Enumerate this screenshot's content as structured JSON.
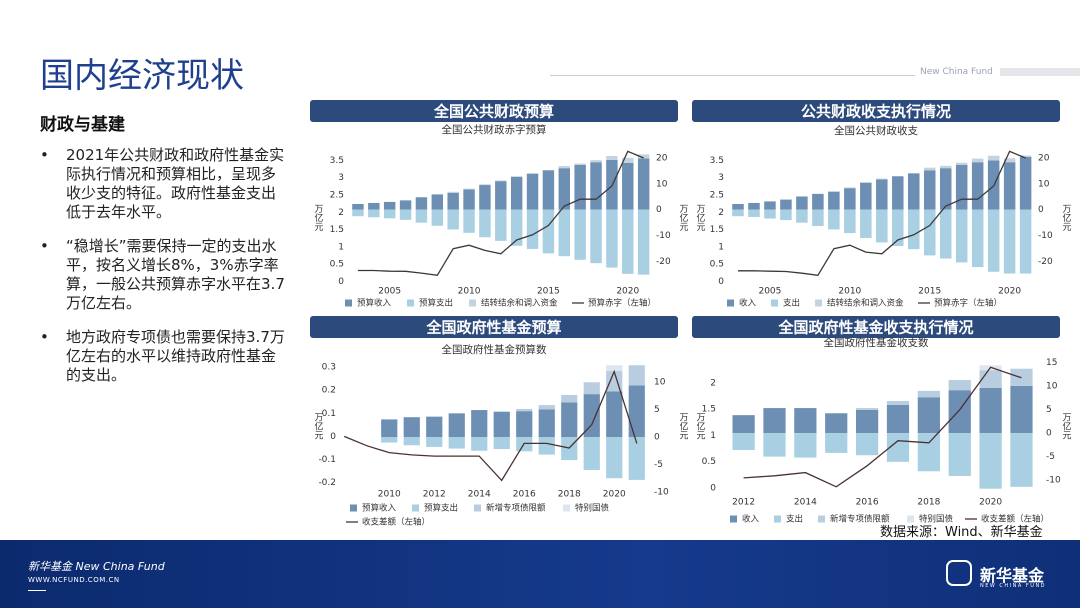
{
  "brand": "New China Fund",
  "title": "国内经济现状",
  "section": "财政与基建",
  "bullets": [
    "2021年公共财政和政府性基金实际执行情况和预算相比，呈现多收少支的特征。政府性基金支出低于去年水平。",
    "“稳增长”需要保持一定的支出水平，按名义增长8%，3%赤字率算，一般公共预算赤字水平在3.7万亿左右。",
    "地方政府专项债也需要保持3.7万亿左右的水平以维持政府性基金的支出。"
  ],
  "source": "数据来源：Wind、新华基金",
  "footer": {
    "brand": "新华基金 New China Fund",
    "url": "WWW.NCFUND.COM.CN",
    "logo_cn": "新华基金",
    "logo_en": "NEW CHINA FUND"
  },
  "chart_data": [
    {
      "type": "bar",
      "title": "全国公共财政预算",
      "subtitle": "全国公共财政赤字预算",
      "ylabel": "万亿元",
      "y2label": "万亿元",
      "x": [
        2003,
        2004,
        2005,
        2006,
        2007,
        2008,
        2009,
        2010,
        2011,
        2012,
        2013,
        2014,
        2015,
        2016,
        2017,
        2018,
        2019,
        2020,
        2021
      ],
      "xlim": [
        2002.5,
        2021.4
      ],
      "xticks": [
        2005,
        2010,
        2015,
        2020
      ],
      "ylim": [
        -0.1,
        3.8
      ],
      "yticks": [
        0,
        0.5,
        1,
        1.5,
        2,
        2.5,
        3,
        3.5
      ],
      "y2lim": [
        -29,
        23
      ],
      "y2ticks": [
        -20,
        -10,
        0,
        10,
        20
      ],
      "series": [
        {
          "name": "预算收入",
          "type": "bar",
          "axis": "y2",
          "color": "#6d8fb3",
          "values": [
            2.2,
            2.6,
            3.0,
            3.6,
            4.8,
            5.9,
            6.5,
            7.8,
            9.5,
            11.0,
            12.6,
            13.9,
            15.2,
            16.0,
            17.3,
            18.3,
            19.2,
            18.0,
            19.8
          ]
        },
        {
          "name": "预算支出",
          "type": "bar",
          "axis": "y2",
          "color": "#a9cfe2",
          "values": [
            -2.5,
            -2.9,
            -3.3,
            -3.9,
            -5.0,
            -6.2,
            -7.6,
            -8.9,
            -10.6,
            -12.0,
            -13.9,
            -15.1,
            -16.8,
            -17.9,
            -19.3,
            -20.6,
            -22.3,
            -24.7,
            -25.0
          ]
        },
        {
          "name": "结转结余和调入资金",
          "type": "bar",
          "axis": "y2",
          "color": "#c5d3e0",
          "values": [
            0,
            0,
            0,
            0,
            0,
            0,
            0.4,
            0.3,
            0.3,
            0.3,
            0.3,
            0.1,
            0.1,
            0.8,
            0.5,
            0.8,
            1.5,
            2.0,
            1.5
          ]
        },
        {
          "name": "预算赤字（左轴）",
          "type": "line",
          "color": "#3a3a3a",
          "values": [
            0.32,
            0.32,
            0.3,
            0.295,
            0.245,
            0.18,
            0.95,
            1.05,
            0.9,
            0.8,
            1.2,
            1.35,
            1.62,
            2.18,
            2.38,
            2.38,
            2.76,
            3.76,
            3.57
          ]
        }
      ]
    },
    {
      "type": "bar",
      "title": "公共财政收支执行情况",
      "subtitle": "全国公共财政收支",
      "ylabel": "万亿元",
      "y2label": "万亿元",
      "x": [
        2003,
        2004,
        2005,
        2006,
        2007,
        2008,
        2009,
        2010,
        2011,
        2012,
        2013,
        2014,
        2015,
        2016,
        2017,
        2018,
        2019,
        2020,
        2021
      ],
      "xlim": [
        2002.5,
        2021.4
      ],
      "xticks": [
        2005,
        2010,
        2015,
        2020
      ],
      "ylim": [
        -0.1,
        3.8
      ],
      "yticks": [
        0,
        0.5,
        1,
        1.5,
        2,
        2.5,
        3,
        3.5
      ],
      "y2lim": [
        -29,
        23
      ],
      "y2ticks": [
        -20,
        -10,
        0,
        10,
        20
      ],
      "series": [
        {
          "name": "收入",
          "type": "bar",
          "axis": "y2",
          "color": "#6d8fb3",
          "values": [
            2.2,
            2.6,
            3.2,
            3.9,
            5.1,
            6.1,
            6.9,
            8.3,
            10.4,
            11.7,
            12.9,
            14.0,
            15.2,
            16.0,
            17.3,
            18.3,
            19.0,
            18.3,
            20.3
          ]
        },
        {
          "name": "支出",
          "type": "bar",
          "axis": "y2",
          "color": "#a9cfe2",
          "values": [
            -2.5,
            -2.8,
            -3.4,
            -4.0,
            -5.0,
            -6.3,
            -7.6,
            -9.0,
            -10.9,
            -12.6,
            -14.0,
            -15.2,
            -17.6,
            -18.8,
            -20.3,
            -22.1,
            -23.9,
            -24.6,
            -24.6
          ]
        },
        {
          "name": "结转结余和调入资金",
          "type": "bar",
          "axis": "y2",
          "color": "#c5d3e0",
          "values": [
            0,
            0,
            0,
            0,
            0,
            0,
            0.3,
            0.3,
            0.2,
            0.3,
            0.1,
            0.1,
            1.0,
            0.9,
            0.8,
            1.4,
            1.8,
            1.5,
            0.6
          ]
        },
        {
          "name": "预算赤字（左轴）",
          "type": "line",
          "color": "#3a3a3a",
          "values": [
            0.31,
            0.31,
            0.3,
            0.29,
            0.24,
            0.18,
            0.95,
            1.05,
            0.85,
            0.8,
            1.2,
            1.35,
            1.62,
            2.18,
            2.38,
            2.38,
            2.76,
            3.76,
            3.57
          ]
        }
      ]
    },
    {
      "type": "bar",
      "title": "全国政府性基金预算",
      "subtitle": "全国政府性基金预算数",
      "ylabel": "万亿元",
      "y2label": "万亿元",
      "x": [
        2008,
        2009,
        2010,
        2011,
        2012,
        2013,
        2014,
        2015,
        2016,
        2017,
        2018,
        2019,
        2020,
        2021
      ],
      "xlim": [
        2007.9,
        2021.5
      ],
      "xticks": [
        2010,
        2012,
        2014,
        2016,
        2018,
        2020
      ],
      "ylim": [
        -0.24,
        0.33
      ],
      "yticks": [
        -0.2,
        -0.1,
        0,
        0.1,
        0.2,
        0.3
      ],
      "y2lim": [
        -10,
        14
      ],
      "y2ticks": [
        -10,
        -5,
        0,
        5,
        10
      ],
      "series": [
        {
          "name": "预算收入",
          "type": "bar",
          "axis": "y2",
          "color": "#6d8fb3",
          "values": [
            null,
            null,
            3.2,
            3.6,
            3.7,
            4.3,
            4.9,
            4.6,
            4.7,
            5.0,
            6.3,
            7.8,
            8.3,
            9.4
          ]
        },
        {
          "name": "预算支出",
          "type": "bar",
          "axis": "y2",
          "color": "#a9cfe2",
          "values": [
            null,
            null,
            -1.0,
            -1.5,
            -1.8,
            -2.1,
            -2.5,
            -2.2,
            -2.6,
            -3.2,
            -4.2,
            -6.0,
            -7.5,
            -7.8
          ]
        },
        {
          "name": "新增专项债限额",
          "type": "bar",
          "axis": "y2",
          "color": "#b9cde0",
          "values": [
            null,
            null,
            0,
            0,
            0,
            0,
            0,
            0,
            0.4,
            0.8,
            1.35,
            2.15,
            3.75,
            3.65
          ]
        },
        {
          "name": "特别国债",
          "type": "bar",
          "axis": "y2",
          "color": "#dde6ef",
          "values": [
            null,
            null,
            null,
            null,
            null,
            null,
            null,
            null,
            null,
            null,
            null,
            null,
            1.0,
            null
          ]
        },
        {
          "name": "收支差额（左轴）",
          "type": "line",
          "color": "#4a3232",
          "values": [
            0,
            -0.04,
            -0.07,
            -0.08,
            -0.085,
            -0.085,
            -0.085,
            -0.19,
            -0.03,
            -0.03,
            -0.05,
            0.05,
            0.28,
            -0.03
          ]
        }
      ]
    },
    {
      "type": "bar",
      "title": "全国政府性基金收支执行情况",
      "subtitle": "全国政府性基金收支数",
      "ylabel": "万亿元",
      "y2label": "万亿元",
      "x": [
        2012,
        2013,
        2014,
        2015,
        2016,
        2017,
        2018,
        2019,
        2020,
        2021
      ],
      "xlim": [
        2011.3,
        2021.6
      ],
      "xticks": [
        2012,
        2014,
        2016,
        2018,
        2020
      ],
      "ylim": [
        -0.08,
        2.44
      ],
      "yticks": [
        0,
        0.5,
        1,
        1.5,
        2
      ],
      "y2lim": [
        -12.5,
        15.5
      ],
      "y2ticks": [
        -10,
        -5,
        0,
        5,
        10,
        15
      ],
      "series": [
        {
          "name": "收入",
          "type": "bar",
          "axis": "y2",
          "color": "#6d8fb3",
          "values": [
            3.8,
            5.3,
            5.3,
            4.2,
            4.9,
            6.0,
            7.6,
            9.1,
            9.6,
            10.0
          ]
        },
        {
          "name": "支出",
          "type": "bar",
          "axis": "y2",
          "color": "#a9cfe2",
          "values": [
            -3.6,
            -5.0,
            -5.2,
            -4.2,
            -4.7,
            -6.1,
            -8.1,
            -9.1,
            -11.8,
            -11.4
          ]
        },
        {
          "name": "新增专项债限额",
          "type": "bar",
          "axis": "y2",
          "color": "#b9cde0",
          "values": [
            0,
            0,
            0,
            0,
            0.4,
            0.8,
            1.35,
            2.15,
            3.75,
            3.65
          ]
        },
        {
          "name": "特别国债",
          "type": "bar",
          "axis": "y2",
          "color": "#dde6ef",
          "values": [
            null,
            null,
            null,
            null,
            null,
            null,
            null,
            null,
            1.0,
            null
          ]
        },
        {
          "name": "收支差额（左轴）",
          "type": "line",
          "color": "#4a3232",
          "values": [
            0.19,
            0.23,
            0.29,
            0.02,
            0.42,
            0.9,
            0.86,
            1.49,
            2.3,
            2.1
          ]
        }
      ]
    }
  ]
}
